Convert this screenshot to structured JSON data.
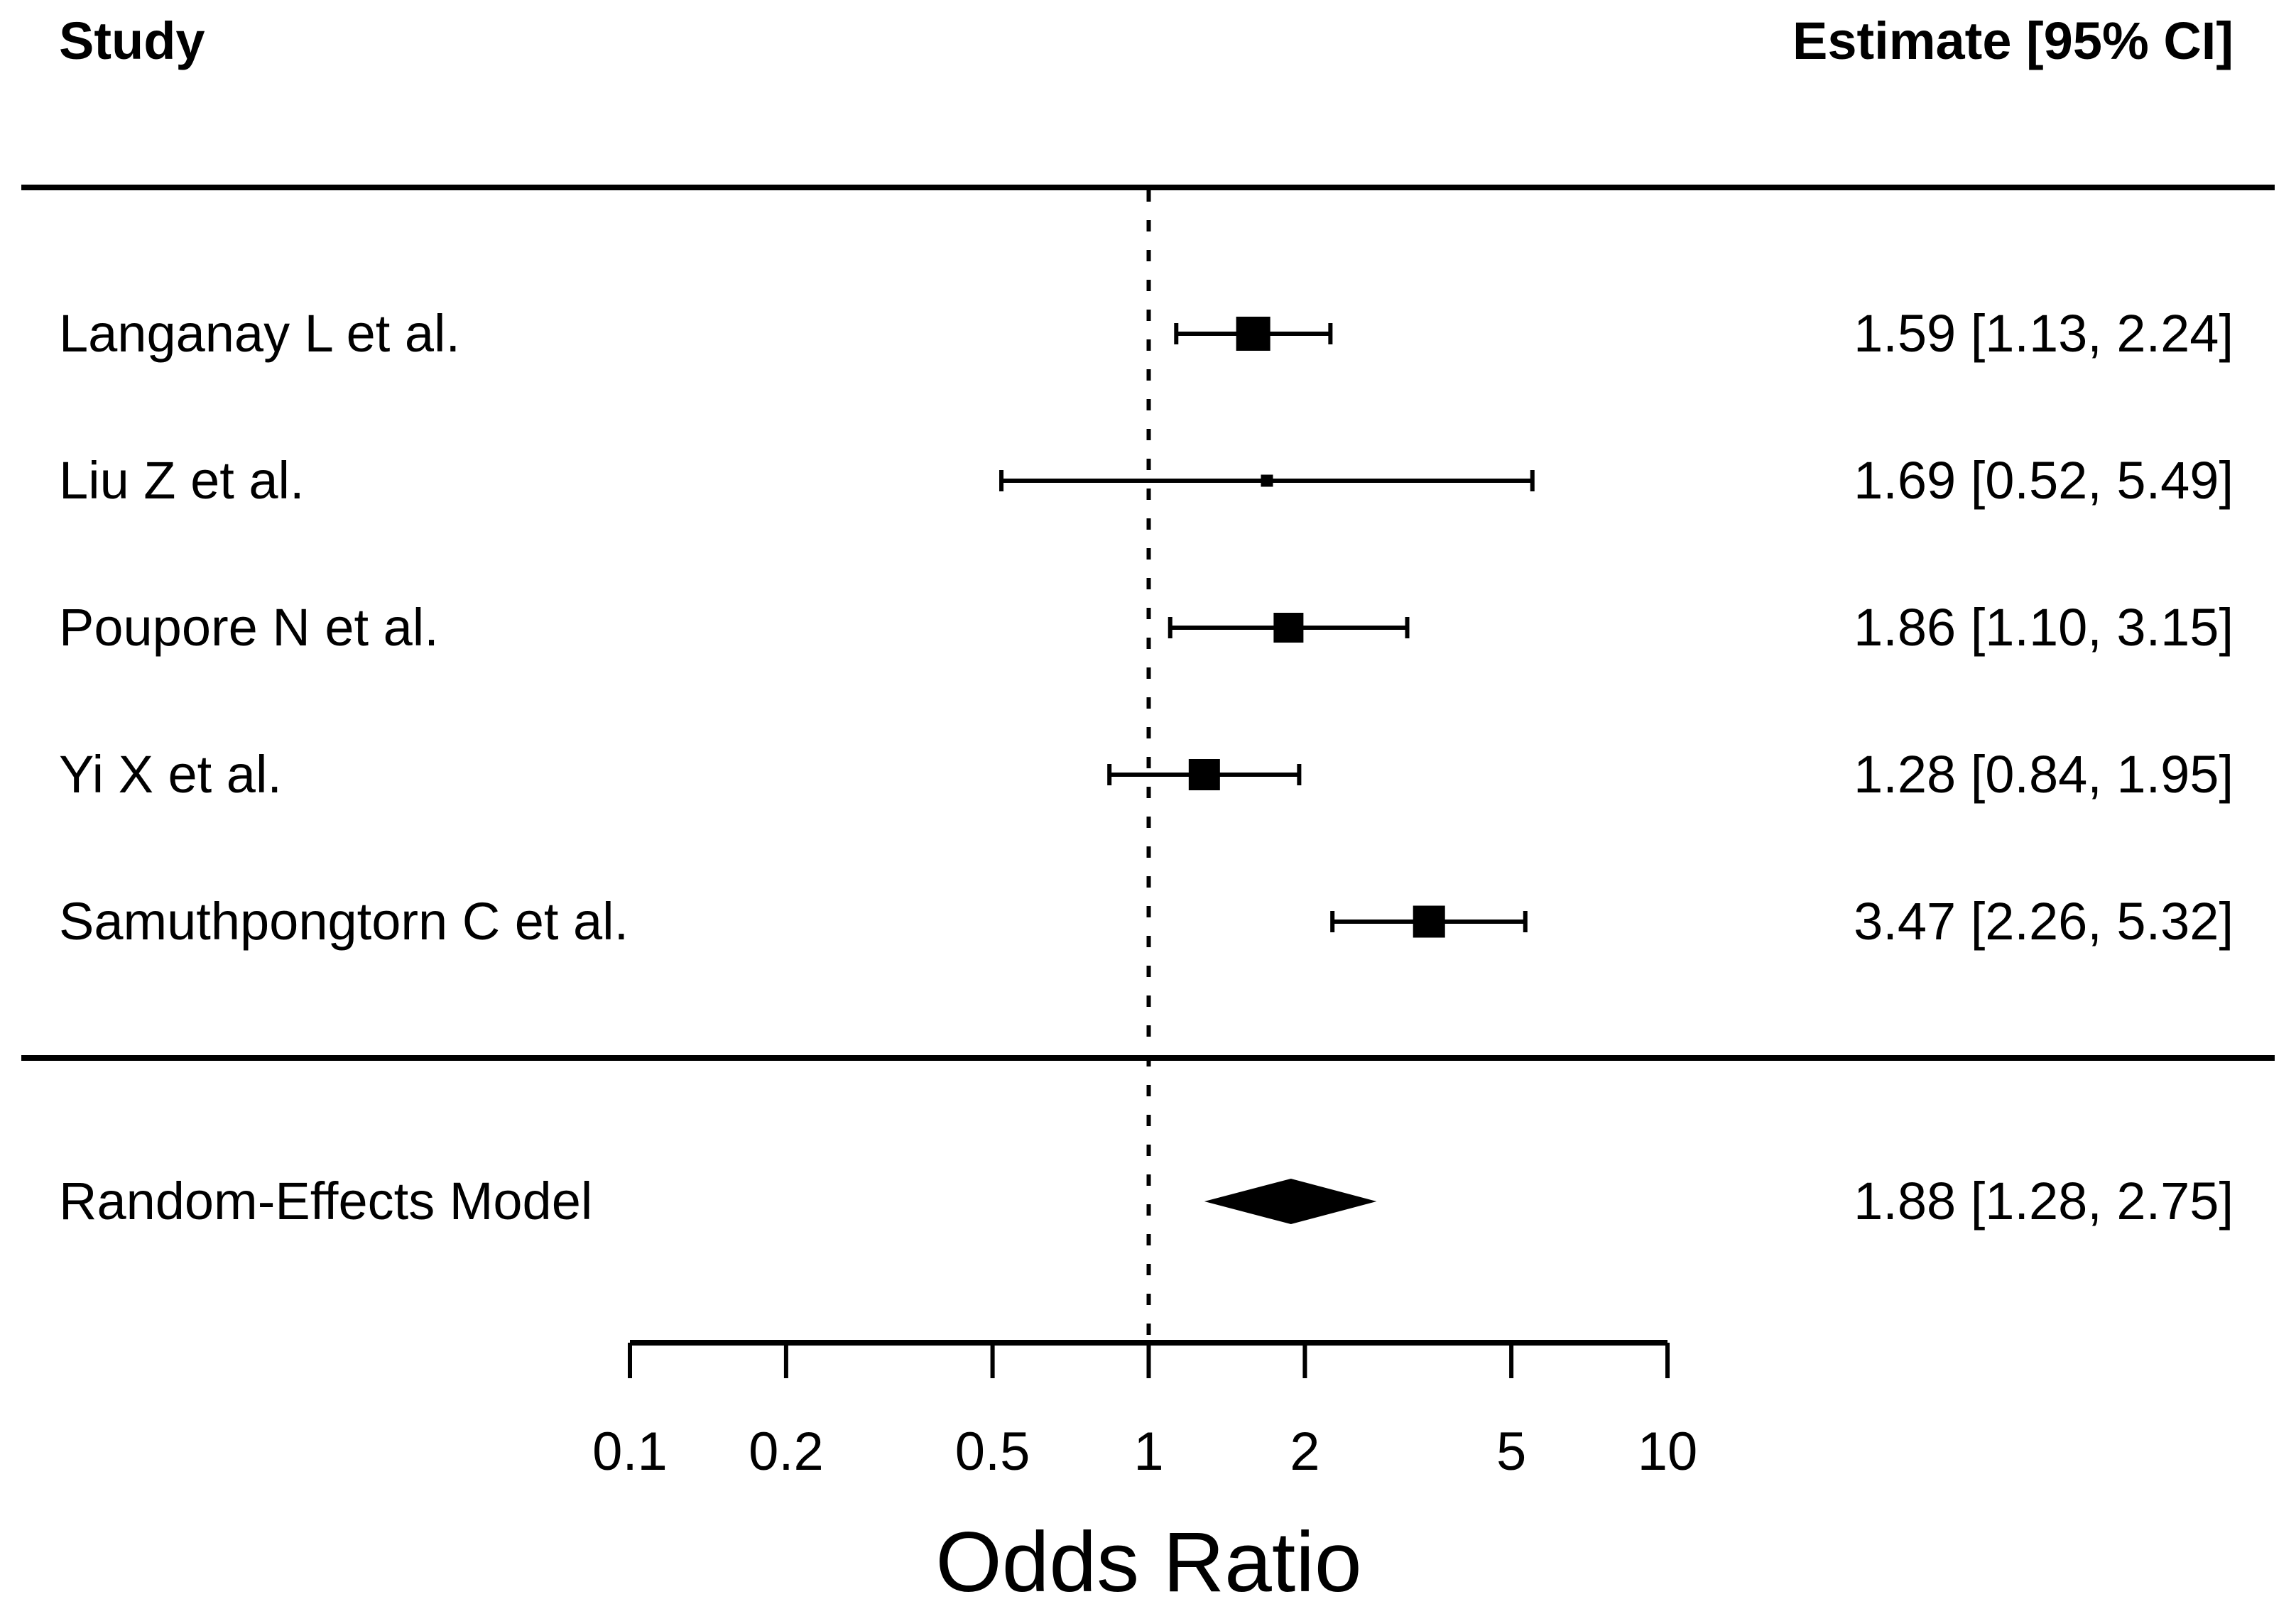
{
  "header": {
    "study": "Study",
    "estimate": "Estimate [95% CI]"
  },
  "studies": [
    {
      "label": "Langanay L et al.",
      "estimate_text": "1.59 [1.13, 2.24]"
    },
    {
      "label": "Liu Z et al.",
      "estimate_text": "1.69 [0.52, 5.49]"
    },
    {
      "label": "Poupore N et al.",
      "estimate_text": "1.86 [1.10, 3.15]"
    },
    {
      "label": "Yi X et al.",
      "estimate_text": "1.28 [0.84, 1.95]"
    },
    {
      "label": "Samuthpongtorn C et al.",
      "estimate_text": "3.47 [2.26, 5.32]"
    }
  ],
  "summary": {
    "label": "Random-Effects Model",
    "estimate_text": "1.88 [1.28, 2.75]"
  },
  "axis": {
    "title": "Odds Ratio",
    "tick_labels": [
      "0.1",
      "0.2",
      "0.5",
      "1",
      "2",
      "5",
      "10"
    ]
  },
  "colors": {
    "foreground": "#000000",
    "background": "#ffffff"
  },
  "chart_data": {
    "type": "scatter",
    "subtype": "forest_plot",
    "xlabel": "Odds Ratio",
    "x_scale": "log10",
    "xlim": [
      0.1,
      10
    ],
    "x_ticks": [
      0.1,
      0.2,
      0.5,
      1,
      2,
      5,
      10
    ],
    "reference_line_x": 1,
    "grid": false,
    "columns": [
      "Study",
      "Estimate [95% CI]"
    ],
    "studies": [
      {
        "label": "Langanay L et al.",
        "estimate": 1.59,
        "ci_lower": 1.13,
        "ci_upper": 2.24,
        "marker_size_px": 48
      },
      {
        "label": "Liu Z et al.",
        "estimate": 1.69,
        "ci_lower": 0.52,
        "ci_upper": 5.49,
        "marker_size_px": 17
      },
      {
        "label": "Poupore N et al.",
        "estimate": 1.86,
        "ci_lower": 1.1,
        "ci_upper": 3.15,
        "marker_size_px": 42
      },
      {
        "label": "Yi X et al.",
        "estimate": 1.28,
        "ci_lower": 0.84,
        "ci_upper": 1.95,
        "marker_size_px": 44
      },
      {
        "label": "Samuthpongtorn C et al.",
        "estimate": 3.47,
        "ci_lower": 2.26,
        "ci_upper": 5.32,
        "marker_size_px": 45
      }
    ],
    "summary": {
      "label": "Random-Effects Model",
      "estimate": 1.88,
      "ci_lower": 1.28,
      "ci_upper": 2.75
    }
  }
}
